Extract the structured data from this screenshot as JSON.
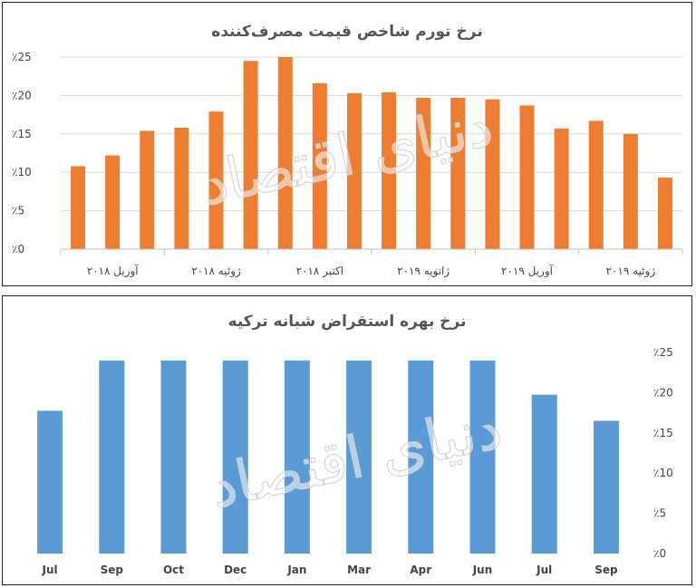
{
  "watermark": "دنیای اقتصاد",
  "chart_data": [
    {
      "type": "bar",
      "title": "نرخ تورم شاخص قیمت مصرف‌کننده",
      "y_tick_labels": [
        "٪0",
        "٪5",
        "٪10",
        "٪15",
        "٪20",
        "٪25"
      ],
      "ylim": [
        0,
        25
      ],
      "x_tick_labels": [
        "آوریل ۲۰۱۸",
        "ژوئیه ۲۰۱۸",
        "اکتبر ۲۰۱۸",
        "ژانویه ۲۰۱۹",
        "آوریل ۲۰۱۹",
        "ژوئیه ۲۰۱۹"
      ],
      "values": [
        10.8,
        12.2,
        15.4,
        15.8,
        17.9,
        24.5,
        25.0,
        21.6,
        20.3,
        20.4,
        19.7,
        19.7,
        19.5,
        18.7,
        15.7,
        16.7,
        15.0,
        9.3
      ],
      "color": "#ed7d31",
      "grid": true,
      "legend": "none"
    },
    {
      "type": "bar",
      "title": "نرخ بهره استقراض شبانه ترکیه",
      "categories": [
        "Jul",
        "Sep",
        "Oct",
        "Dec",
        "Jan",
        "Mar",
        "Apr",
        "Jun",
        "Jul",
        "Sep"
      ],
      "values": [
        17.75,
        24,
        24,
        24,
        24,
        24,
        24,
        24,
        19.75,
        16.5
      ],
      "y_tick_labels": [
        "٪0",
        "٪5",
        "٪10",
        "٪15",
        "٪20",
        "٪25"
      ],
      "ylim": [
        0,
        25
      ],
      "color": "#5b9bd5",
      "grid": false,
      "legend": "none"
    }
  ]
}
